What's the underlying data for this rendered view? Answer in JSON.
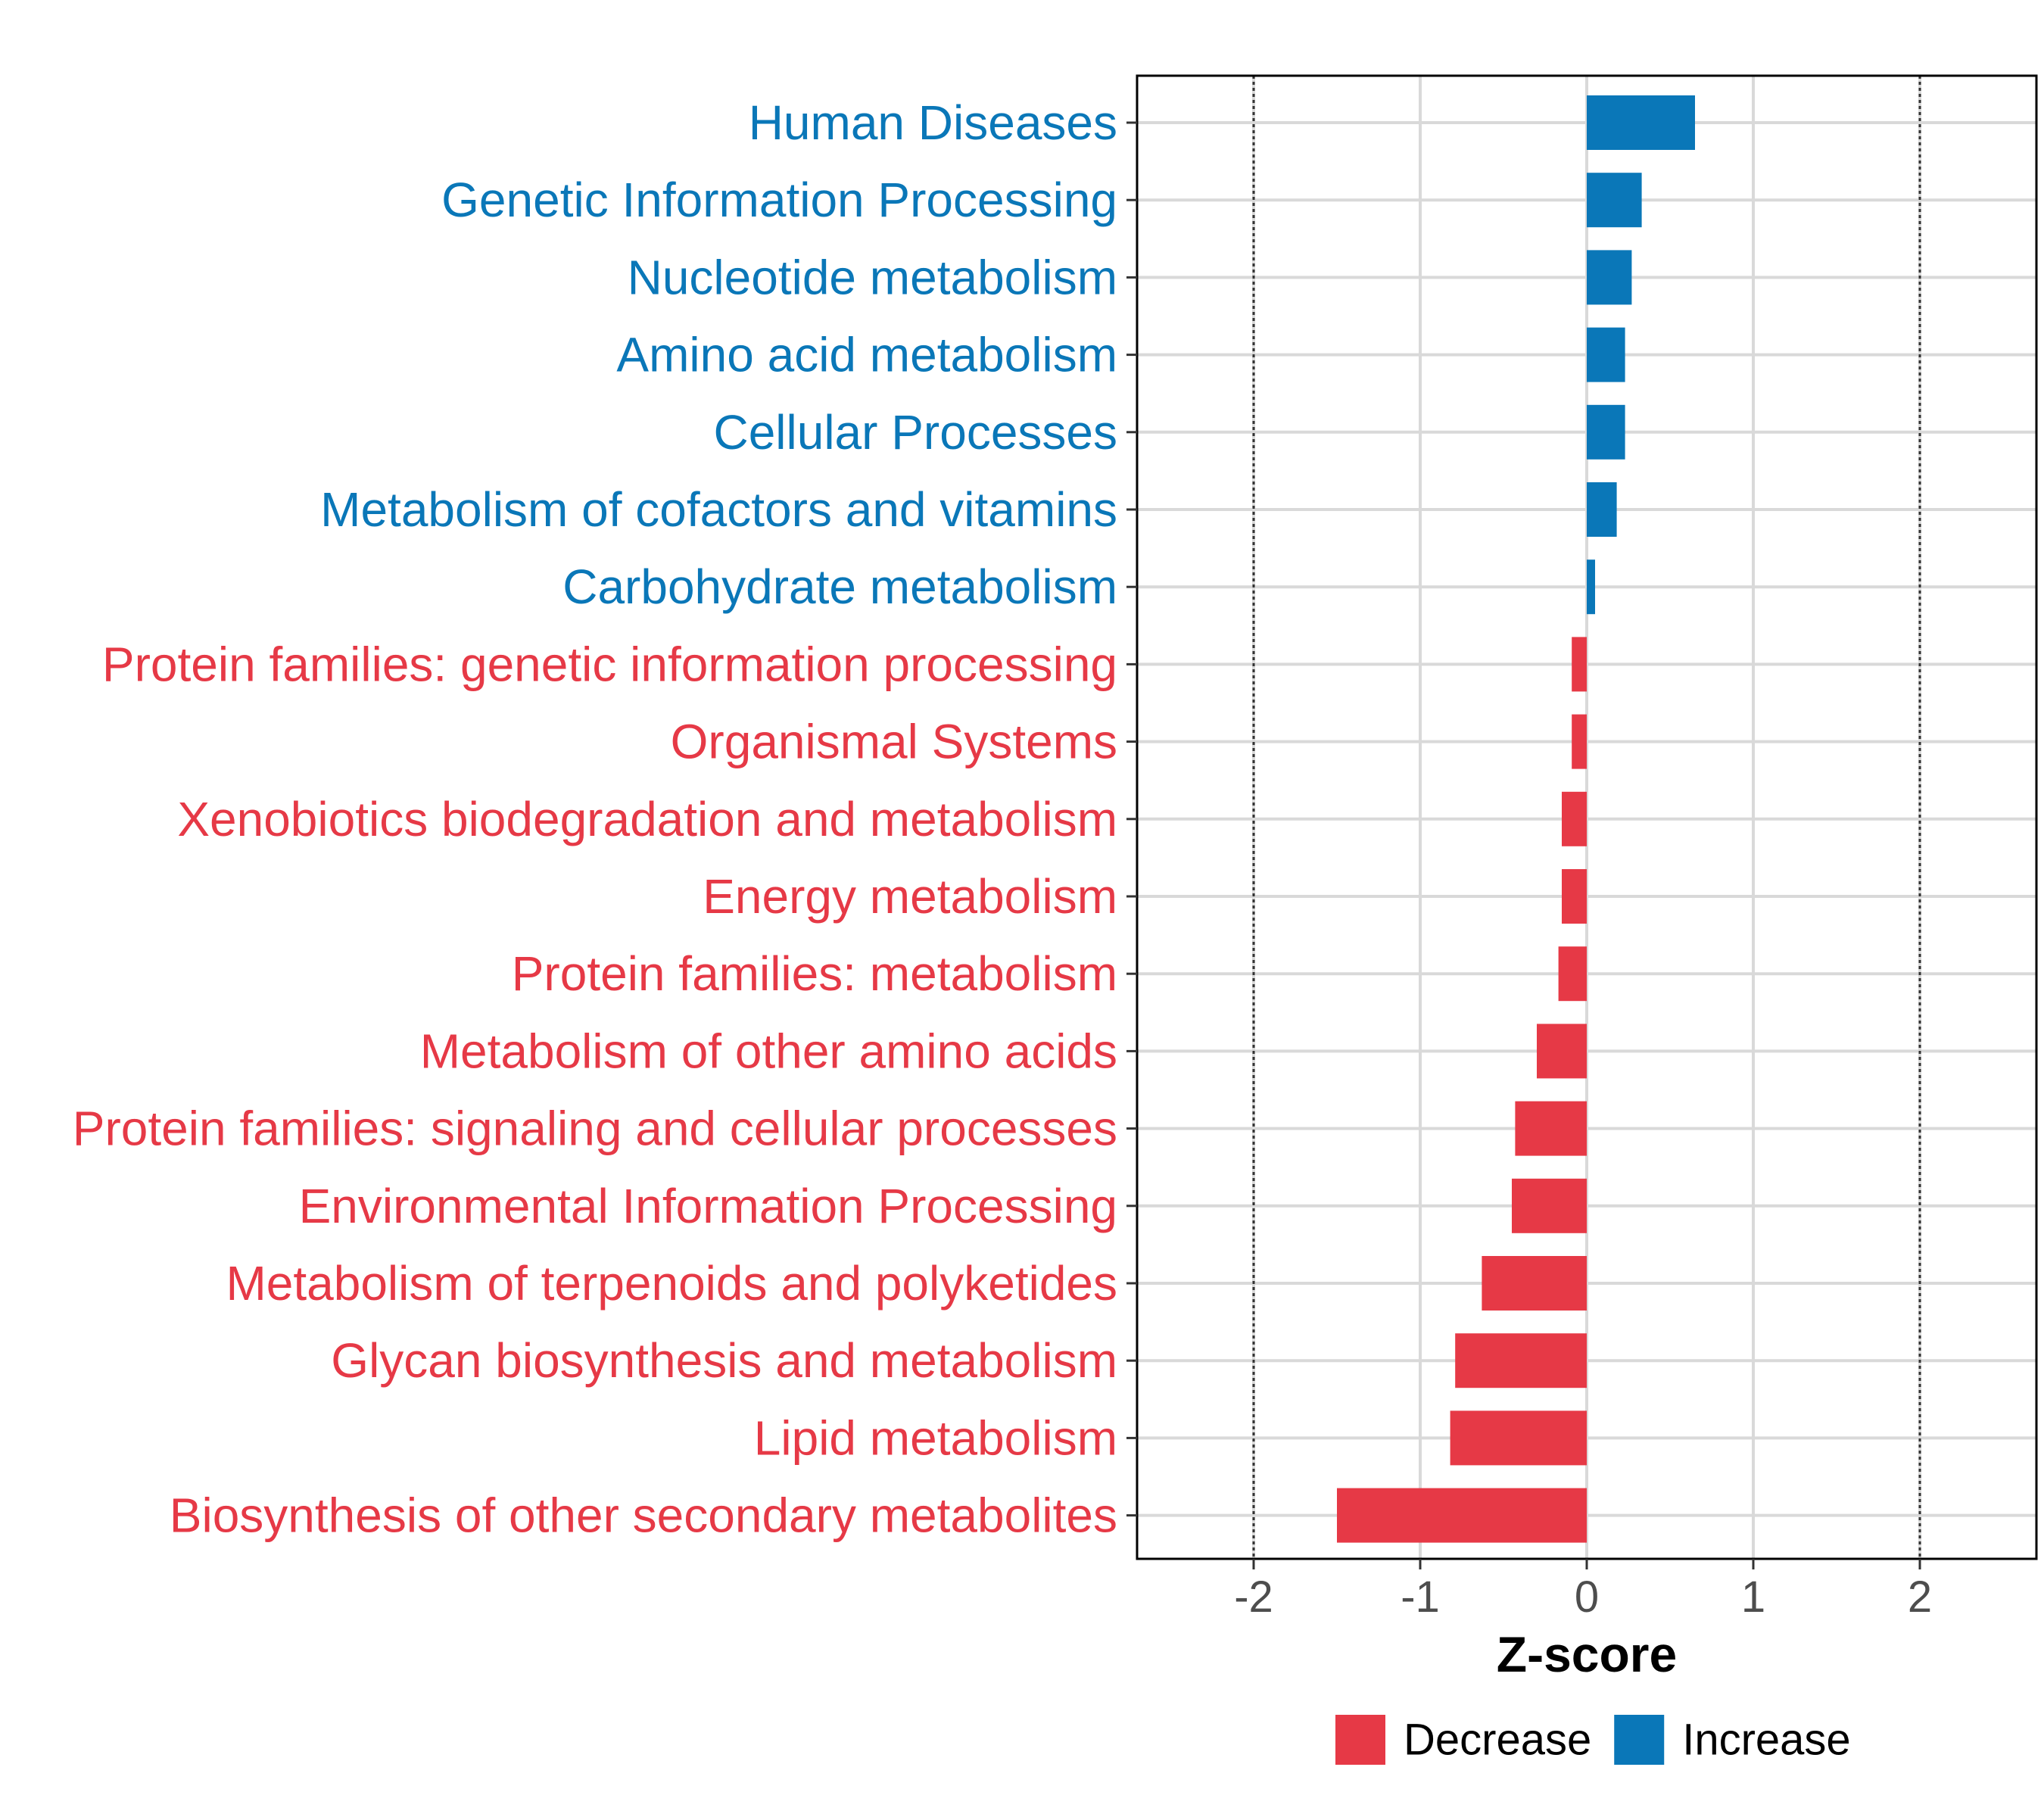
{
  "chart_data": {
    "type": "bar",
    "orientation": "horizontal",
    "xlabel": "Z-score",
    "ylabel": "",
    "xlim": [
      -2.7,
      2.7
    ],
    "xticks": [
      -2,
      -1,
      0,
      1,
      2
    ],
    "xtick_labels": [
      "-2",
      "-1",
      "0",
      "1",
      "2"
    ],
    "reference_lines": [
      -2,
      2
    ],
    "grid": true,
    "legend_position": "bottom",
    "categories": [
      "Human Diseases",
      "Genetic Information Processing",
      "Nucleotide metabolism",
      "Amino acid metabolism",
      "Cellular Processes",
      "Metabolism of cofactors and vitamins",
      "Carbohydrate metabolism",
      "Protein families: genetic information processing",
      "Organismal Systems",
      "Xenobiotics biodegradation and metabolism",
      "Energy metabolism",
      "Protein families: metabolism",
      "Metabolism of other amino acids",
      "Protein families: signaling and cellular processes",
      "Environmental Information Processing",
      "Metabolism of terpenoids and polyketides",
      "Glycan biosynthesis and metabolism",
      "Lipid metabolism",
      "Biosynthesis of other secondary metabolites"
    ],
    "values": [
      0.65,
      0.33,
      0.27,
      0.23,
      0.23,
      0.18,
      0.05,
      -0.09,
      -0.09,
      -0.15,
      -0.15,
      -0.17,
      -0.3,
      -0.43,
      -0.45,
      -0.63,
      -0.79,
      -0.82,
      -1.5
    ],
    "groups": [
      "Increase",
      "Increase",
      "Increase",
      "Increase",
      "Increase",
      "Increase",
      "Increase",
      "Decrease",
      "Decrease",
      "Decrease",
      "Decrease",
      "Decrease",
      "Decrease",
      "Decrease",
      "Decrease",
      "Decrease",
      "Decrease",
      "Decrease",
      "Decrease"
    ],
    "legend": [
      {
        "name": "Decrease",
        "color": "#e63946"
      },
      {
        "name": "Increase",
        "color": "#0a77b8"
      }
    ]
  }
}
